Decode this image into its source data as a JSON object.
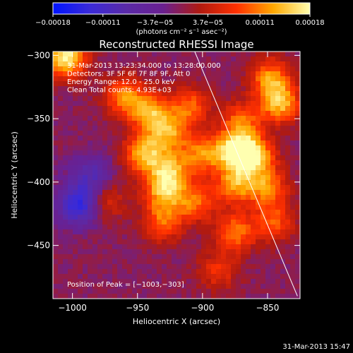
{
  "chart_data": {
    "type": "heatmap",
    "title": "Reconstructed RHESSI Image",
    "xlabel": "Heliocentric X (arcsec)",
    "ylabel": "Heliocentric Y (arcsec)",
    "xlim": [
      -1015,
      -825
    ],
    "ylim": [
      -492,
      -297
    ],
    "x_ticks": [
      -1000,
      -950,
      -900,
      -850
    ],
    "x_tick_labels": [
      "−1000",
      "−950",
      "−900",
      "−850"
    ],
    "y_ticks": [
      -300,
      -350,
      -400,
      -450
    ],
    "y_tick_labels": [
      "−300",
      "−350",
      "−400",
      "−450"
    ],
    "colorbar": {
      "range": [
        -0.00018,
        0.00018
      ],
      "ticks": [
        -0.00018,
        -0.00011,
        -3.7e-05,
        3.7e-05,
        0.00011,
        0.00018
      ],
      "tick_labels": [
        "−0.00018",
        "−0.00011",
        "−3.7e−05",
        "3.7e−05",
        "0.00011",
        "0.00018"
      ],
      "unit_label": "(photons cm⁻² s⁻¹ asec⁻²)",
      "colormap": [
        "#0014ff",
        "#3a2ad8",
        "#5a2aa8",
        "#6a2090",
        "#b01a10",
        "#ff3000",
        "#ffa800",
        "#ffffb0"
      ]
    },
    "annotations": [
      "31-Mar-2013 13:23:34.000 to 13:28:00.000",
      "Detectors: 3F 5F 6F 7F 8F 9F, Att 0",
      "Energy Range: 12.0 - 25.0 keV",
      "Clean     Total counts: 4.93E+03"
    ],
    "peak_label": "Position of Peak = [−1003,−303]",
    "peak_position": [
      -1003,
      -303
    ],
    "limb_line": [
      [
        -906,
        -297
      ],
      [
        -827,
        -490
      ]
    ],
    "sources": [
      {
        "x": -960,
        "y": -332,
        "amplitude": 0.00012
      },
      {
        "x": -940,
        "y": -346,
        "amplitude": 0.00013
      },
      {
        "x": -910,
        "y": -340,
        "amplitude": 0.0001
      },
      {
        "x": -925,
        "y": -362,
        "amplitude": 0.00011
      },
      {
        "x": -945,
        "y": -378,
        "amplitude": 0.00014
      },
      {
        "x": -925,
        "y": -392,
        "amplitude": 0.00012
      },
      {
        "x": -900,
        "y": -378,
        "amplitude": 0.00011
      },
      {
        "x": -875,
        "y": -375,
        "amplitude": 0.00016
      },
      {
        "x": -860,
        "y": -380,
        "amplitude": 0.00015
      },
      {
        "x": -870,
        "y": -352,
        "amplitude": 0.0001
      },
      {
        "x": -930,
        "y": -408,
        "amplitude": 0.00012
      },
      {
        "x": -905,
        "y": -416,
        "amplitude": 0.0001
      },
      {
        "x": -875,
        "y": -402,
        "amplitude": 0.00012
      },
      {
        "x": -850,
        "y": -405,
        "amplitude": 0.00011
      },
      {
        "x": -930,
        "y": -432,
        "amplitude": 0.0001
      },
      {
        "x": -875,
        "y": -440,
        "amplitude": 0.00011
      },
      {
        "x": -845,
        "y": -432,
        "amplitude": 9e-05
      },
      {
        "x": -975,
        "y": -415,
        "amplitude": 7e-05
      },
      {
        "x": -888,
        "y": -470,
        "amplitude": 7e-05
      },
      {
        "x": -840,
        "y": -338,
        "amplitude": 0.00014
      },
      {
        "x": -1005,
        "y": -302,
        "amplitude": 0.00018
      },
      {
        "x": -848,
        "y": -318,
        "amplitude": 0.00012
      }
    ],
    "negative_sources": [
      {
        "x": -995,
        "y": -418,
        "amplitude": -0.00014
      },
      {
        "x": -985,
        "y": -395,
        "amplitude": -8e-05
      }
    ],
    "grid": false
  },
  "footer": {
    "timestamp": "31-Mar-2013 15:47"
  }
}
